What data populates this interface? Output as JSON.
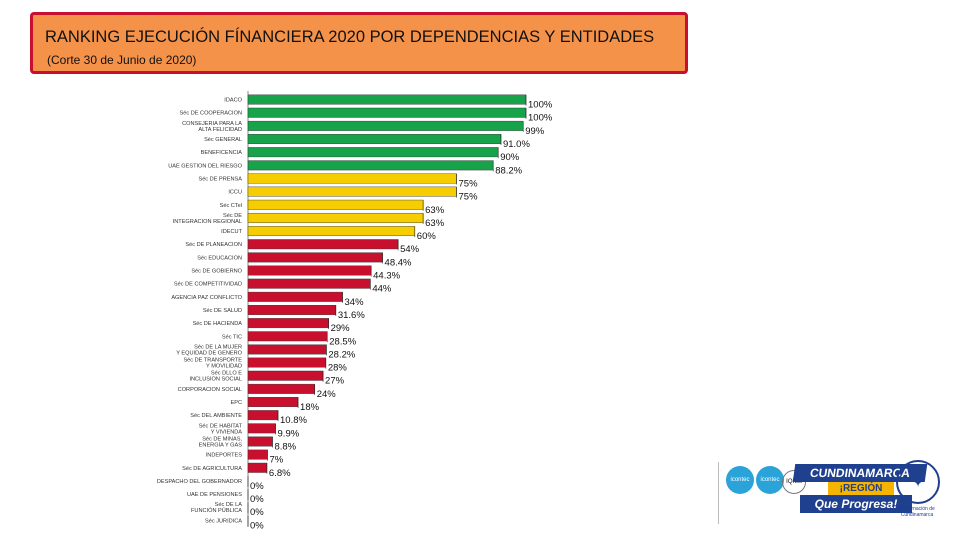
{
  "header": {
    "title": "RANKING EJECUCIÓN FÍNANCIERA 2020 POR DEPENDENCIAS Y ENTIDADES",
    "subtitle": "(Corte 30 de Junio de 2020)"
  },
  "colors": {
    "green": "#16a34a",
    "yellow": "#f6cd00",
    "red": "#c8102e",
    "banner": "#f5924a"
  },
  "chart_data": {
    "type": "bar",
    "orientation": "horizontal",
    "title": "RANKING EJECUCIÓN FÍNANCIERA 2020 POR DEPENDENCIAS Y ENTIDADES",
    "xlim": [
      0,
      100
    ],
    "categories": [
      "IDACO",
      "Séc DE COOPERACION",
      "CONSEJERIA PARA LA ALTA FELICIDAD",
      "Séc GENERAL",
      "BENEFICENCIA",
      "UAE GESTION DEL RIESGO",
      "Séc DE PRENSA",
      "ICCU",
      "Séc CTel",
      "Séc DE INTEGRACION REGIONAL",
      "IDECUT",
      "Séc DE PLANEACION",
      "Séc EDUCACION",
      "Séc DE GOBIERNO",
      "Séc DE COMPETITIVIDAD",
      "AGENCIA PAZ CONFLICTO",
      "Séc DE SALUD",
      "Séc DE HACIENDA",
      "Séc TIC",
      "Séc DE LA MUJER Y EQUIDAD DE GENERO",
      "Séc DE TRANSPORTE Y MOVILIDAD",
      "Séc DLLO E INCLUSION SOCIAL",
      "CORPORACION SOCIAL",
      "EPC",
      "Séc DEL AMBIENTE",
      "Séc DE HABITAT Y VIVIENDA",
      "Séc DE MINAS, ENERGÍA Y GAS",
      "INDEPORTES",
      "Séc DE AGRICULTURA",
      "DESPACHO DEL GOBERNADOR",
      "UAE DE PENSIONES",
      "Séc DE LA FUNCIÓN PÚBLICA",
      "Séc JURIDICA"
    ],
    "values": [
      100,
      100,
      99,
      91.0,
      90,
      88.2,
      75,
      75,
      63,
      63,
      60,
      54,
      48.4,
      44.3,
      44,
      34,
      31.6,
      29,
      28.5,
      28.2,
      28,
      27,
      24,
      18,
      10.8,
      9.9,
      8.8,
      7,
      6.8,
      0,
      0,
      0,
      0
    ],
    "data_labels": [
      "100%",
      "100%",
      "99%",
      "91.0%",
      "90%",
      "88.2%",
      "75%",
      "75%",
      "63%",
      "63%",
      "60%",
      "54%",
      "48.4%",
      "44.3%",
      "44%",
      "34%",
      "31.6%",
      "29%",
      "28.5%",
      "28.2%",
      "28%",
      "27%",
      "24%",
      "18%",
      "10.8%",
      "9.9%",
      "8.8%",
      "7%",
      "6.8%",
      "0%",
      "0%",
      "0%",
      "0%"
    ],
    "bar_colors": [
      "green",
      "green",
      "green",
      "green",
      "green",
      "green",
      "yellow",
      "yellow",
      "yellow",
      "yellow",
      "yellow",
      "red",
      "red",
      "red",
      "red",
      "red",
      "red",
      "red",
      "red",
      "red",
      "red",
      "red",
      "red",
      "red",
      "red",
      "red",
      "red",
      "red",
      "red",
      "red",
      "red",
      "red",
      "red"
    ]
  },
  "logos": {
    "badge1": "icontec",
    "badge2": "icontec",
    "badge3": "IQNet",
    "brand_line1": "CUNDINAMARCA",
    "brand_line2": "¡REGIÓN",
    "brand_line3": "Que Progresa!",
    "seal_caption": "Gobernación de Cundinamarca"
  }
}
